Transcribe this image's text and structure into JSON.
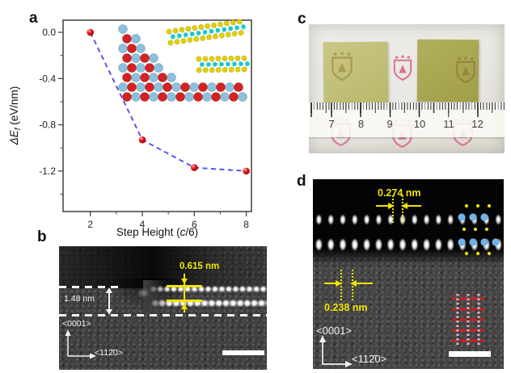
{
  "figure": {
    "panel_labels": {
      "a": "a",
      "b": "b",
      "c": "c",
      "d": "d"
    }
  },
  "chart_data": {
    "type": "scatter-line",
    "x": [
      2,
      4,
      6,
      8
    ],
    "y": [
      0.0,
      -0.93,
      -1.17,
      -1.2
    ],
    "xticks": [
      2,
      4,
      6,
      8
    ],
    "xtick_labels": [
      "2",
      "4",
      "6",
      "8"
    ],
    "x_minor_ticks": [
      3,
      5,
      7
    ],
    "yticks": [
      0.0,
      -0.4,
      -0.8,
      -1.2
    ],
    "ytick_labels": [
      "0.0",
      "-0.4",
      "-0.8",
      "-1.2"
    ],
    "y_minor_ticks": [
      -0.2,
      -0.6,
      -1.0,
      -1.4
    ],
    "xlim": [
      0.95,
      8.2
    ],
    "ylim": [
      -1.55,
      0.105
    ],
    "xlabel_parts": [
      "Step Height (",
      "c",
      "/6)"
    ],
    "ylabel_parts": [
      "ΔE",
      "f",
      " (eV/nm)"
    ],
    "grid": false,
    "legend": null,
    "marker_color": "#e8191c",
    "line_color": "#4e4ef0",
    "line_style": "dashed"
  },
  "panel_b": {
    "measure_width": "0.615 nm",
    "measure_height": "1.48 nm",
    "axis_vertical": "<0001>",
    "axis_horizontal": "<112̄0>",
    "annotation_color": "#f0e400"
  },
  "panel_c": {
    "ruler_numbers": [
      "7",
      "8",
      "9",
      "10",
      "11",
      "12"
    ]
  },
  "panel_d": {
    "measure_top": "0.274 nm",
    "measure_bottom": "0.238 nm",
    "axis_vertical": "<0001>",
    "axis_horizontal": "<112̄0>",
    "annotation_color": "#f0e400"
  },
  "colors": {
    "marker": "#e8191c",
    "dashed_line": "#4e4ef0",
    "annotation_yellow": "#f0e400",
    "tem_background": "#3d3d3d",
    "inset": {
      "red": "#d42222",
      "blue": "#8cc0dc",
      "yellow": "#e2cf00",
      "cyan": "#1ac8c8"
    },
    "sample_left": "#c2c078",
    "sample_right": "#aca953",
    "shield_pink": "#d96088",
    "paper": "#ecebe7",
    "overlay_blue": "#6db3e8",
    "overlay_pink": "#e8a8bc",
    "overlay_red": "#e01818"
  }
}
